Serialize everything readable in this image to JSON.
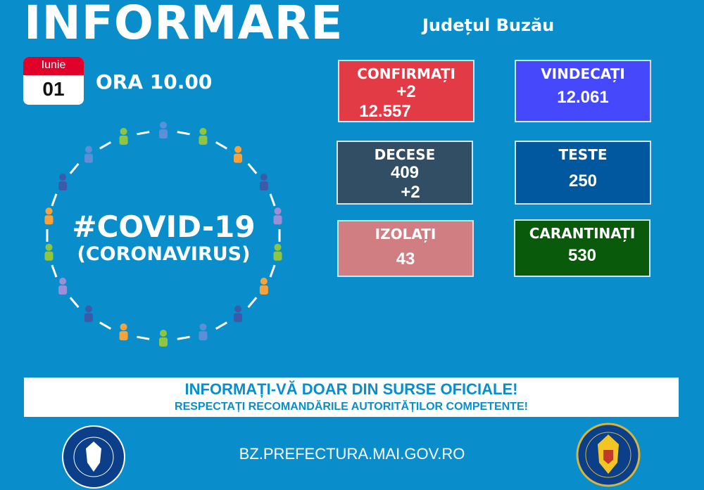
{
  "header": {
    "title": "INFORMARE",
    "county": "Județul Buzău",
    "calendar": {
      "month": "Iunie",
      "day": "01"
    },
    "time": "ORA 10.00"
  },
  "hashtag": {
    "line1": "#COVID-19",
    "line2": "(CORONAVIRUS)"
  },
  "stats": [
    {
      "label": "CONFIRMAȚI",
      "values": [
        "+2",
        "12.557"
      ],
      "color": "#e23b45"
    },
    {
      "label": "VINDECAȚI",
      "values": [
        "12.061"
      ],
      "color": "#4649fb"
    },
    {
      "label": "DECESE",
      "values": [
        "409",
        "+2"
      ],
      "color": "#314e64"
    },
    {
      "label": "TESTE",
      "values": [
        "250"
      ],
      "color": "#02589e"
    },
    {
      "label": "IZOLAȚI",
      "values": [
        "43"
      ],
      "color": "#d17e82"
    },
    {
      "label": "CARANTINAȚI",
      "values": [
        "530"
      ],
      "color": "#095b0b"
    }
  ],
  "banner": {
    "line1": "INFORMAȚI-VĂ DOAR DIN SURSE OFICIALE!",
    "line2": "RESPECTAȚI RECOMANDĂRILE AUTORITĂȚILOR COMPETENTE!"
  },
  "footer": {
    "url": "BZ.PREFECTURA.MAI.GOV.RO",
    "logo_left": "GUVERNUL ROMÂNIEI",
    "logo_right": "DEPARTAMENTUL PENTRU SITUAȚII DE URGENȚĂ M.A.I."
  },
  "figure_colors": [
    "#5b8fd6",
    "#8ec63f",
    "#f7a23b",
    "#3b5ba9",
    "#9b8fd6",
    "#8ec63f",
    "#f7a23b",
    "#3b5ba9"
  ]
}
